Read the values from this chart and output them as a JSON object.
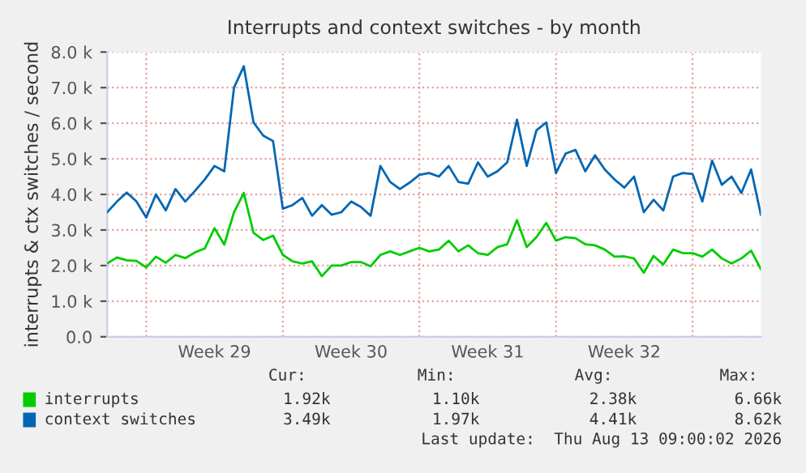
{
  "chart_data": {
    "type": "line",
    "title": "Interrupts and context switches - by month",
    "ylabel": "interrupts & ctx switches / second",
    "categories": [
      null,
      null,
      null,
      null,
      null,
      null,
      null,
      null,
      null,
      null,
      null,
      "Week 29",
      null,
      null,
      null,
      null,
      null,
      null,
      null,
      null,
      null,
      null,
      null,
      null,
      null,
      "Week 30",
      null,
      null,
      null,
      null,
      null,
      null,
      null,
      null,
      null,
      null,
      null,
      null,
      null,
      "Week 31",
      null,
      null,
      null,
      null,
      null,
      null,
      null,
      null,
      null,
      null,
      null,
      null,
      null,
      "Week 32",
      null,
      null,
      null,
      null,
      null,
      null,
      null,
      null,
      null,
      null,
      null,
      null,
      null,
      null
    ],
    "ylim": [
      0,
      8000
    ],
    "yticks": [
      {
        "value": 0,
        "label": "0.0"
      },
      {
        "value": 1000,
        "label": "1.0 k"
      },
      {
        "value": 2000,
        "label": "2.0 k"
      },
      {
        "value": 3000,
        "label": "3.0 k"
      },
      {
        "value": 4000,
        "label": "4.0 k"
      },
      {
        "value": 5000,
        "label": "5.0 k"
      },
      {
        "value": 6000,
        "label": "6.0 k"
      },
      {
        "value": 7000,
        "label": "7.0 k"
      },
      {
        "value": 8000,
        "label": "8.0 k"
      }
    ],
    "grid": true,
    "legend": "bottom",
    "marker": "none",
    "line_style": "solid",
    "series": [
      {
        "name": "interrupts",
        "color": "#00cc00",
        "values": [
          2060,
          2230,
          2150,
          2130,
          1950,
          2250,
          2080,
          2300,
          2210,
          2370,
          2480,
          3050,
          2590,
          3500,
          4040,
          2920,
          2720,
          2840,
          2300,
          2120,
          2060,
          2120,
          1700,
          2000,
          2000,
          2100,
          2100,
          1980,
          2300,
          2400,
          2300,
          2400,
          2500,
          2400,
          2450,
          2700,
          2400,
          2570,
          2350,
          2300,
          2520,
          2600,
          3280,
          2520,
          2800,
          3200,
          2700,
          2800,
          2770,
          2600,
          2570,
          2450,
          2250,
          2260,
          2200,
          1800,
          2270,
          2030,
          2450,
          2350,
          2350,
          2250,
          2450,
          2200,
          2060,
          2200,
          2420,
          1900
        ]
      },
      {
        "name": "context switches",
        "color": "#0066b3",
        "values": [
          3500,
          3800,
          4050,
          3800,
          3350,
          4000,
          3550,
          4150,
          3800,
          4100,
          4420,
          4800,
          4650,
          7000,
          7600,
          6020,
          5650,
          5500,
          3600,
          3700,
          3900,
          3400,
          3700,
          3430,
          3500,
          3800,
          3650,
          3400,
          4800,
          4350,
          4150,
          4330,
          4550,
          4600,
          4500,
          4800,
          4350,
          4300,
          4900,
          4500,
          4650,
          4900,
          6100,
          4800,
          5800,
          6020,
          4600,
          5150,
          5250,
          4650,
          5100,
          4700,
          4420,
          4190,
          4500,
          3500,
          3850,
          3550,
          4500,
          4600,
          4570,
          3800,
          4950,
          4270,
          4500,
          4040,
          4700,
          3430
        ]
      }
    ],
    "annotations": [
      "Cur:",
      "Min:",
      "Avg:",
      "Max:",
      "1.92k",
      "1.10k",
      "2.38k",
      "6.66k",
      "3.49k",
      "1.97k",
      "4.41k",
      "8.62k",
      "Last update:  Thu Aug 13 09:00:02 2026"
    ]
  }
}
